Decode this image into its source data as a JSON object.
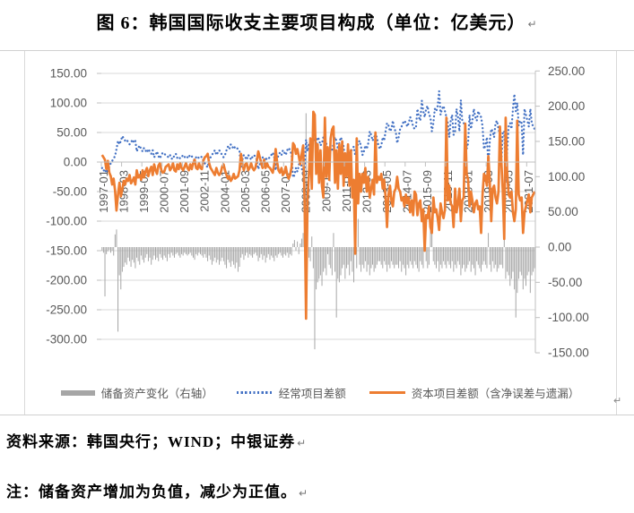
{
  "title": {
    "text": "图 6：韩国国际收支主要项目构成（单位：亿美元）",
    "pilcrow": "↵"
  },
  "footnotes": {
    "source": "资料来源：韩国央行；WIND；中银证券",
    "note": "注：储备资产增加为负值，减少为正值。",
    "pilcrow": "↵"
  },
  "colors": {
    "grid": "#D9D9D9",
    "axis": "#BFBFBF",
    "axis_text": "#595959",
    "border": "#D0D0D0",
    "bar": "#A6A6A6",
    "blue": "#4472C4",
    "orange": "#ED7D31"
  },
  "chart_data": {
    "type": "bar",
    "subtype": "combo: bars (right axis) + dotted line + solid line (left axis), monthly data 1997-01 to 2021-12",
    "title": "图 6：韩国国际收支主要项目构成（单位：亿美元）",
    "xlabel": "",
    "ylabel_left": "亿美元",
    "ylabel_right": "亿美元",
    "left_axis": {
      "min": -300,
      "max": 150,
      "step": 50
    },
    "right_axis": {
      "min": -150,
      "max": 250,
      "step": 50
    },
    "grid": "horizontal only",
    "legend_position": "bottom",
    "x_start": "1997-01",
    "x_frequency": "monthly",
    "x_tick_interval": 14,
    "x_tick_labels": [
      "1997-01",
      "1998-03",
      "1999-05",
      "2000-07",
      "2001-09",
      "2002-11",
      "2004-01",
      "2005-03",
      "2006-05",
      "2007-07",
      "2008-09",
      "2009-11",
      "2011-01",
      "2012-03",
      "2013-05",
      "2014-07",
      "2015-09",
      "2016-11",
      "2018-01",
      "2019-03",
      "2020-05",
      "2021-07"
    ],
    "series": [
      {
        "name": "储备资产变化（右轴）",
        "type": "bar",
        "axis": "right",
        "color": "#A6A6A6",
        "values": [
          -5,
          -8,
          -70,
          -10,
          -6,
          -4,
          -8,
          -5,
          -12,
          18,
          25,
          -120,
          -40,
          -60,
          -35,
          -28,
          -22,
          -25,
          -15,
          -20,
          -28,
          -18,
          -22,
          -30,
          -15,
          -20,
          -25,
          -12,
          -18,
          -22,
          -15,
          -10,
          -20,
          -15,
          -25,
          -18,
          -12,
          -18,
          -15,
          -20,
          -10,
          -15,
          -18,
          -12,
          -15,
          -20,
          -10,
          -15,
          -8,
          -12,
          -15,
          -10,
          -8,
          -12,
          -15,
          -10,
          -12,
          -8,
          -10,
          -12,
          -10,
          -8,
          -12,
          -15,
          -18,
          -10,
          -12,
          -8,
          -10,
          -12,
          -15,
          -10,
          -15,
          -20,
          -12,
          -18,
          -25,
          -20,
          -15,
          -22,
          -18,
          -25,
          -20,
          -15,
          -20,
          -25,
          -30,
          -18,
          -22,
          -28,
          -20,
          -25,
          -30,
          -22,
          -35,
          -28,
          -15,
          -10,
          -18,
          -12,
          -8,
          -15,
          -10,
          -12,
          -15,
          -10,
          -8,
          -12,
          -20,
          -15,
          -10,
          -18,
          -12,
          -22,
          -15,
          -10,
          -18,
          -12,
          -15,
          -20,
          -12,
          -15,
          -10,
          -8,
          -12,
          -15,
          -10,
          -12,
          -8,
          -15,
          -10,
          -12,
          5,
          10,
          -5,
          8,
          -10,
          5,
          12,
          20,
          35,
          190,
          60,
          -15,
          -20,
          15,
          -30,
          -145,
          -60,
          -50,
          -45,
          -40,
          -55,
          -35,
          -30,
          -40,
          -10,
          -25,
          -30,
          -40,
          20,
          -35,
          -100,
          -45,
          -50,
          -40,
          -30,
          -25,
          -45,
          -30,
          -25,
          -40,
          -20,
          -35,
          -50,
          25,
          -30,
          40,
          -25,
          -35,
          -25,
          -30,
          -20,
          -35,
          -25,
          -40,
          -30,
          -25,
          -35,
          -30,
          -25,
          -20,
          -20,
          -25,
          -30,
          -20,
          -25,
          -35,
          -25,
          -30,
          -20,
          -25,
          -30,
          -25,
          -25,
          -30,
          -20,
          -35,
          -25,
          -30,
          -40,
          -25,
          -30,
          -20,
          -25,
          -30,
          -20,
          -25,
          -30,
          -35,
          -20,
          -25,
          -30,
          25,
          -20,
          -30,
          -25,
          30,
          30,
          -20,
          -25,
          -30,
          -20,
          -35,
          -25,
          -30,
          -20,
          -25,
          -30,
          -20,
          -25,
          -30,
          -20,
          -35,
          -25,
          -30,
          -20,
          -25,
          -40,
          -30,
          -25,
          -35,
          -30,
          -25,
          -20,
          -35,
          -25,
          -30,
          -40,
          -20,
          -25,
          -30,
          -35,
          -25,
          -20,
          -25,
          -30,
          20,
          -25,
          -35,
          -20,
          -30,
          -25,
          -35,
          -30,
          -25,
          -25,
          -30,
          90,
          -45,
          -35,
          -40,
          -55,
          -45,
          -35,
          -60,
          -100,
          -65,
          -45,
          -35,
          -40,
          -60,
          -45,
          -55,
          -40,
          -35,
          -65,
          -40,
          -35,
          -30
        ]
      },
      {
        "name": "经常项目差额",
        "type": "dotted-line",
        "axis": "left",
        "color": "#4472C4",
        "values": [
          -10,
          -15,
          -12,
          -18,
          -14,
          -8,
          -2,
          2,
          6,
          10,
          22,
          36,
          30,
          36,
          44,
          40,
          36,
          38,
          34,
          30,
          33,
          38,
          33,
          36,
          18,
          24,
          28,
          22,
          18,
          24,
          20,
          16,
          22,
          18,
          14,
          20,
          8,
          12,
          18,
          10,
          6,
          12,
          16,
          14,
          12,
          10,
          8,
          12,
          6,
          5,
          12,
          14,
          7,
          9,
          6,
          8,
          12,
          9,
          6,
          8,
          12,
          8,
          10,
          6,
          3,
          8,
          10,
          6,
          8,
          9,
          3,
          -2,
          -6,
          -9,
          4,
          8,
          12,
          16,
          20,
          12,
          16,
          20,
          16,
          12,
          8,
          12,
          20,
          26,
          22,
          30,
          26,
          22,
          26,
          24,
          22,
          18,
          -8,
          4,
          12,
          8,
          4,
          12,
          9,
          4,
          9,
          12,
          9,
          4,
          -12,
          -4,
          4,
          8,
          0,
          8,
          4,
          6,
          8,
          12,
          16,
          8,
          -14,
          4,
          12,
          16,
          12,
          20,
          16,
          12,
          20,
          24,
          20,
          12,
          -26,
          -22,
          -10,
          -16,
          -6,
          8,
          -10,
          -20,
          -12,
          38,
          18,
          32,
          12,
          30,
          42,
          36,
          32,
          42,
          38,
          28,
          32,
          42,
          38,
          32,
          8,
          12,
          22,
          18,
          32,
          42,
          36,
          22,
          32,
          42,
          36,
          26,
          2,
          8,
          22,
          12,
          18,
          22,
          26,
          12,
          22,
          32,
          36,
          26,
          12,
          18,
          28,
          22,
          32,
          52,
          46,
          36,
          42,
          46,
          42,
          28,
          22,
          28,
          42,
          36,
          52,
          66,
          62,
          52,
          56,
          70,
          56,
          52,
          32,
          42,
          56,
          60,
          66,
          70,
          66,
          60,
          66,
          76,
          70,
          60,
          56,
          60,
          90,
          76,
          70,
          104,
          86,
          76,
          90,
          95,
          80,
          76,
          52,
          66,
          90,
          86,
          95,
          120,
          80,
          90,
          95,
          86,
          76,
          66,
          42,
          70,
          80,
          46,
          52,
          90,
          76,
          52,
          105,
          70,
          66,
          60,
          22,
          32,
          80,
          56,
          70,
          90,
          76,
          70,
          86,
          80,
          76,
          60,
          22,
          28,
          42,
          -6,
          36,
          56,
          52,
          42,
          66,
          70,
          56,
          46,
          2,
          52,
          52,
          -32,
          18,
          60,
          66,
          56,
          90,
          115,
          86,
          100,
          62,
          70,
          66,
          12,
          90,
          80,
          70,
          60,
          90,
          66,
          60,
          56
        ]
      },
      {
        "name": "资本项目差额（含净误差与遗漏）",
        "type": "line",
        "axis": "left",
        "color": "#ED7D31",
        "values": [
          12,
          8,
          4,
          -12,
          2,
          -18,
          -24,
          -38,
          -28,
          -48,
          -82,
          -55,
          -35,
          -58,
          -46,
          -32,
          -38,
          -28,
          -32,
          -22,
          -36,
          -32,
          -26,
          -38,
          -14,
          -26,
          -22,
          -30,
          -14,
          -26,
          -16,
          -10,
          -24,
          -14,
          -8,
          -22,
          -4,
          -14,
          -20,
          -6,
          -2,
          -14,
          -18,
          -16,
          -8,
          -6,
          -4,
          -14,
          -10,
          -2,
          -14,
          -16,
          -4,
          -12,
          -2,
          -10,
          -14,
          -8,
          -2,
          -10,
          -14,
          -4,
          -12,
          -2,
          4,
          -10,
          -12,
          -2,
          -10,
          -12,
          2,
          8,
          10,
          14,
          -2,
          -10,
          -14,
          -18,
          -22,
          -10,
          -18,
          -22,
          -18,
          -8,
          -4,
          -14,
          -22,
          -28,
          -24,
          -32,
          -28,
          -20,
          -28,
          -26,
          -24,
          -14,
          14,
          -2,
          -14,
          -4,
          -2,
          -14,
          -10,
          -2,
          -10,
          -14,
          -10,
          2,
          18,
          8,
          -2,
          -10,
          4,
          -10,
          -2,
          -8,
          -10,
          -14,
          -18,
          -4,
          22,
          0,
          -14,
          -18,
          -10,
          -22,
          -18,
          -8,
          -22,
          -28,
          -22,
          -8,
          32,
          28,
          14,
          22,
          10,
          -4,
          14,
          28,
          -70,
          -265,
          -65,
          -20,
          40,
          -45,
          85,
          80,
          -20,
          30,
          -35,
          20,
          -40,
          -60,
          75,
          -25,
          25,
          -30,
          40,
          55,
          60,
          -35,
          20,
          -45,
          30,
          -20,
          35,
          -40,
          15,
          -25,
          30,
          -40,
          20,
          -60,
          -30,
          -155,
          40,
          -70,
          -20,
          -50,
          -20,
          -35,
          -10,
          -50,
          -25,
          -60,
          -45,
          -30,
          -55,
          50,
          -35,
          -25,
          -30,
          -20,
          -45,
          -30,
          -60,
          -110,
          -55,
          -40,
          -65,
          -75,
          -50,
          -45,
          -25,
          -45,
          -50,
          -65,
          -60,
          -75,
          -55,
          -70,
          -60,
          -85,
          -65,
          -90,
          -50,
          -55,
          -90,
          -70,
          -65,
          -100,
          -80,
          -150,
          -90,
          -95,
          -75,
          -110,
          -120,
          -60,
          -85,
          -80,
          -95,
          -115,
          -70,
          -85,
          -95,
          -80,
          75,
          -65,
          -40,
          -70,
          -75,
          -110,
          -45,
          -85,
          -70,
          -45,
          -100,
          -65,
          -60,
          65,
          -20,
          -30,
          -75,
          -50,
          -65,
          -85,
          -70,
          -65,
          -80,
          -75,
          -120,
          -55,
          -20,
          -25,
          -40,
          10,
          -35,
          -100,
          -45,
          -40,
          -60,
          -70,
          -50,
          60,
          0,
          -50,
          -130,
          75,
          -15,
          -55,
          -60,
          -50,
          -85,
          -100,
          -80,
          70,
          -55,
          -65,
          -60,
          -120,
          -85,
          -75,
          -65,
          -55,
          -85,
          -60,
          -55,
          -50
        ]
      }
    ]
  }
}
